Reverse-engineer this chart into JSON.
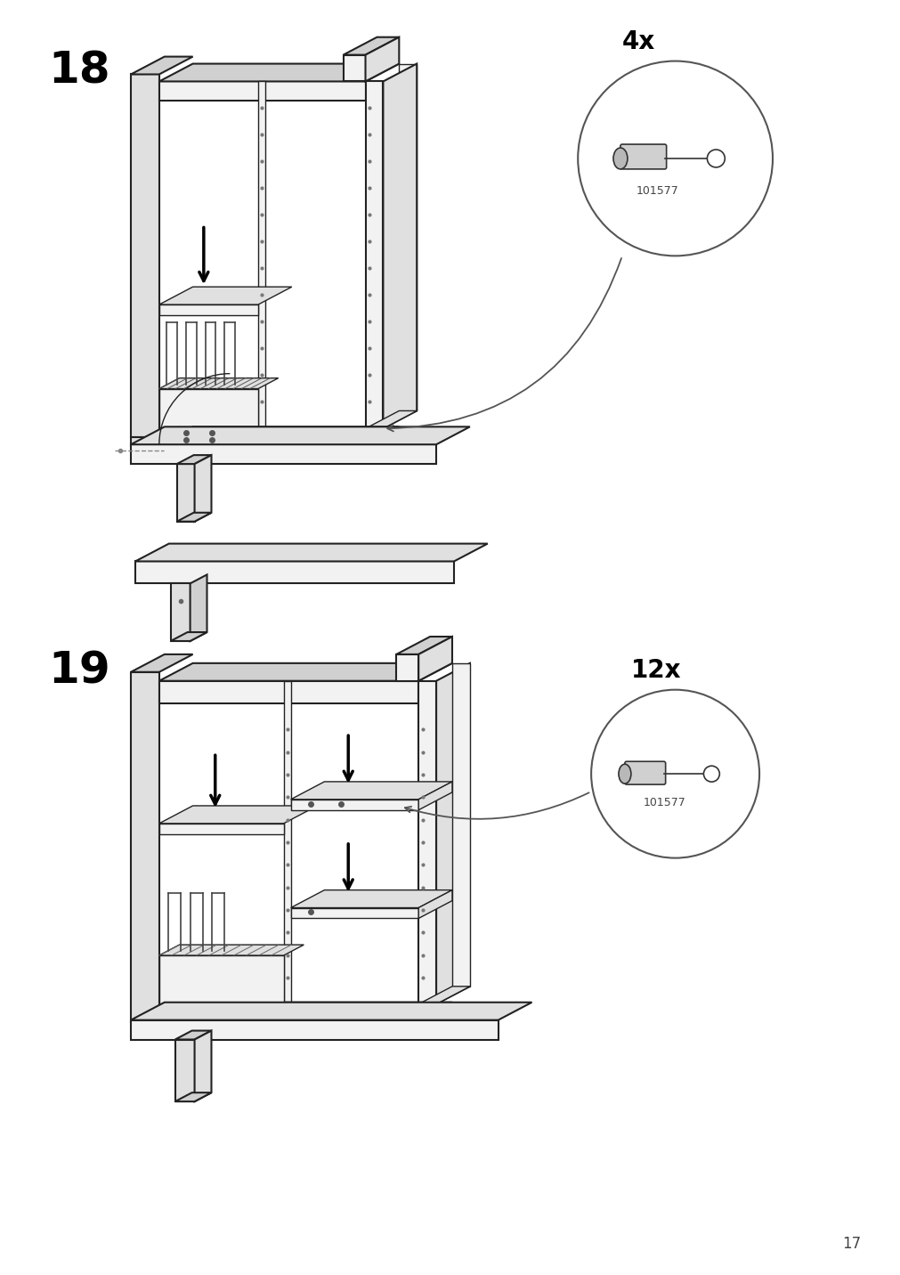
{
  "bg_color": "#ffffff",
  "line_color": "#222222",
  "page_number": "17",
  "step18": {
    "label": "18",
    "fontsize": 36
  },
  "step19": {
    "label": "19",
    "fontsize": 36
  },
  "callout18": {
    "quantity": "4x",
    "part_number": "101577"
  },
  "callout19": {
    "quantity": "12x",
    "part_number": "101577"
  }
}
